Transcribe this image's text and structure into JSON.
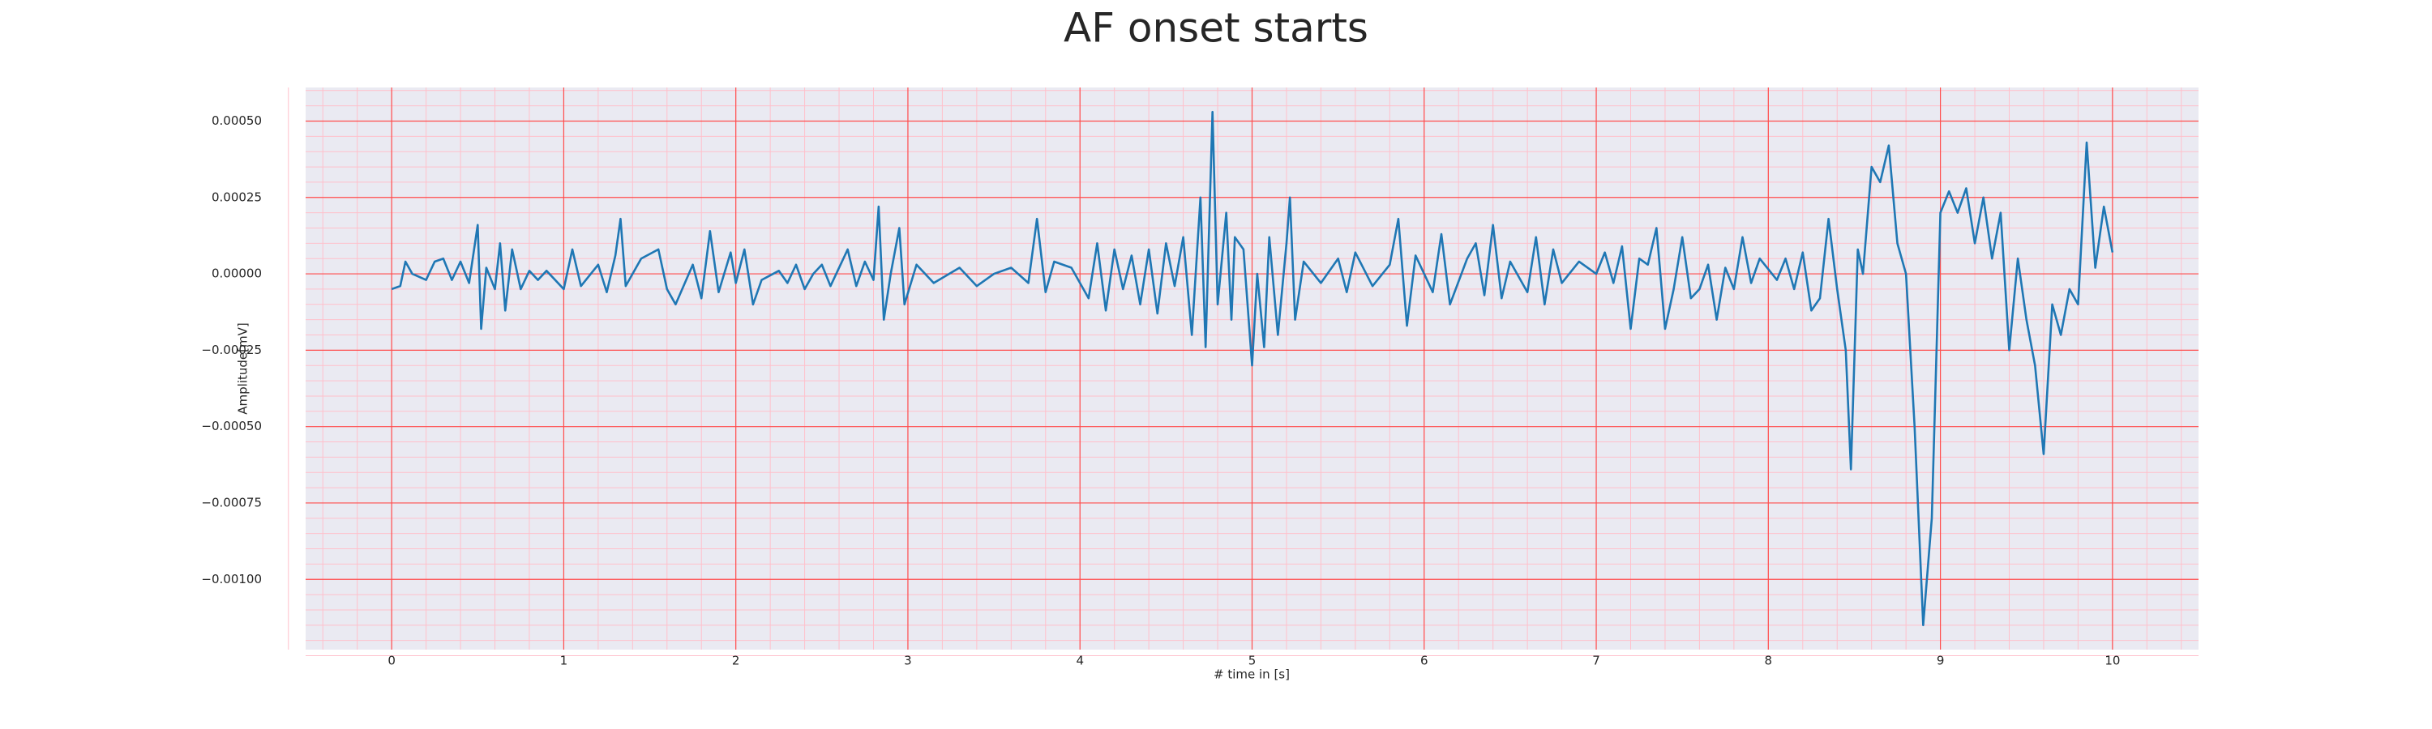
{
  "chart_data": {
    "type": "line",
    "title": "AF onset starts",
    "xlabel": "# time in [s]",
    "ylabel": "Amplitude[mV]",
    "x": [
      0,
      0.05,
      0.08,
      0.12,
      0.2,
      0.25,
      0.3,
      0.35,
      0.4,
      0.45,
      0.5,
      0.52,
      0.55,
      0.6,
      0.63,
      0.66,
      0.7,
      0.75,
      0.8,
      0.85,
      0.9,
      1.0,
      1.05,
      1.1,
      1.2,
      1.25,
      1.3,
      1.33,
      1.36,
      1.45,
      1.55,
      1.6,
      1.65,
      1.75,
      1.8,
      1.85,
      1.9,
      1.97,
      2.0,
      2.05,
      2.1,
      2.15,
      2.25,
      2.3,
      2.35,
      2.4,
      2.45,
      2.5,
      2.55,
      2.6,
      2.65,
      2.7,
      2.75,
      2.8,
      2.83,
      2.86,
      2.9,
      2.95,
      2.98,
      3.05,
      3.15,
      3.3,
      3.4,
      3.5,
      3.6,
      3.7,
      3.75,
      3.8,
      3.85,
      3.95,
      4.05,
      4.1,
      4.15,
      4.2,
      4.25,
      4.3,
      4.35,
      4.4,
      4.45,
      4.5,
      4.55,
      4.6,
      4.65,
      4.7,
      4.73,
      4.77,
      4.8,
      4.85,
      4.88,
      4.9,
      4.95,
      5.0,
      5.03,
      5.07,
      5.1,
      5.15,
      5.2,
      5.22,
      5.25,
      5.3,
      5.4,
      5.5,
      5.55,
      5.6,
      5.7,
      5.8,
      5.85,
      5.9,
      5.95,
      6.05,
      6.1,
      6.15,
      6.25,
      6.3,
      6.35,
      6.4,
      6.45,
      6.5,
      6.6,
      6.65,
      6.7,
      6.75,
      6.8,
      6.9,
      7.0,
      7.05,
      7.1,
      7.15,
      7.2,
      7.25,
      7.3,
      7.35,
      7.4,
      7.45,
      7.5,
      7.55,
      7.6,
      7.65,
      7.7,
      7.75,
      7.8,
      7.85,
      7.9,
      7.95,
      8.05,
      8.1,
      8.15,
      8.2,
      8.25,
      8.3,
      8.35,
      8.4,
      8.45,
      8.48,
      8.52,
      8.55,
      8.6,
      8.65,
      8.7,
      8.75,
      8.8,
      8.85,
      8.9,
      8.95,
      9.0,
      9.05,
      9.1,
      9.15,
      9.2,
      9.25,
      9.3,
      9.35,
      9.4,
      9.45,
      9.5,
      9.55,
      9.6,
      9.65,
      9.7,
      9.75,
      9.8,
      9.85,
      9.9,
      9.95,
      10.0
    ],
    "series": [
      {
        "color": "#1f77b4",
        "values": [
          -5e-05,
          -4e-05,
          4e-05,
          0.0,
          -2e-05,
          4e-05,
          5e-05,
          -2e-05,
          4e-05,
          -3e-05,
          0.00016,
          -0.00018,
          2e-05,
          -5e-05,
          0.0001,
          -0.00012,
          8e-05,
          -5e-05,
          1e-05,
          -2e-05,
          1e-05,
          -5e-05,
          8e-05,
          -4e-05,
          3e-05,
          -6e-05,
          6e-05,
          0.00018,
          -4e-05,
          5e-05,
          8e-05,
          -5e-05,
          -0.0001,
          3e-05,
          -8e-05,
          0.00014,
          -6e-05,
          7e-05,
          -3e-05,
          8e-05,
          -0.0001,
          -2e-05,
          1e-05,
          -3e-05,
          3e-05,
          -5e-05,
          0.0,
          3e-05,
          -4e-05,
          2e-05,
          8e-05,
          -4e-05,
          4e-05,
          -2e-05,
          0.00022,
          -0.00015,
          0.0,
          0.00015,
          -0.0001,
          3e-05,
          -3e-05,
          2e-05,
          -4e-05,
          0.0,
          2e-05,
          -3e-05,
          0.00018,
          -6e-05,
          4e-05,
          2e-05,
          -8e-05,
          0.0001,
          -0.00012,
          8e-05,
          -5e-05,
          6e-05,
          -0.0001,
          8e-05,
          -0.00013,
          0.0001,
          -4e-05,
          0.00012,
          -0.0002,
          0.00025,
          -0.00024,
          0.00053,
          -0.0001,
          0.0002,
          -0.00015,
          0.00012,
          8e-05,
          -0.0003,
          0.0,
          -0.00024,
          0.00012,
          -0.0002,
          0.0001,
          0.00025,
          -0.00015,
          4e-05,
          -3e-05,
          5e-05,
          -6e-05,
          7e-05,
          -4e-05,
          3e-05,
          0.00018,
          -0.00017,
          6e-05,
          -6e-05,
          0.00013,
          -0.0001,
          5e-05,
          0.0001,
          -7e-05,
          0.00016,
          -8e-05,
          4e-05,
          -6e-05,
          0.00012,
          -0.0001,
          8e-05,
          -3e-05,
          4e-05,
          0.0,
          7e-05,
          -3e-05,
          9e-05,
          -0.00018,
          5e-05,
          3e-05,
          0.00015,
          -0.00018,
          -5e-05,
          0.00012,
          -8e-05,
          -5e-05,
          3e-05,
          -0.00015,
          2e-05,
          -5e-05,
          0.00012,
          -3e-05,
          5e-05,
          -2e-05,
          5e-05,
          -5e-05,
          7e-05,
          -0.00012,
          -8e-05,
          0.00018,
          -5e-05,
          -0.00025,
          -0.00064,
          8e-05,
          0.0,
          0.00035,
          0.0003,
          0.00042,
          0.0001,
          0.0,
          -0.0005,
          -0.00115,
          -0.0008,
          0.0002,
          0.00027,
          0.0002,
          0.00028,
          0.0001,
          0.00025,
          5e-05,
          0.0002,
          -0.00025,
          5e-05,
          -0.00015,
          -0.0003,
          -0.00059,
          -0.0001,
          -0.0002,
          -5e-05,
          -0.0001,
          0.00043,
          2e-05,
          0.00022,
          7e-05
        ]
      }
    ],
    "xlim": [
      -0.5,
      10.5
    ],
    "xticks": [
      0,
      1,
      2,
      3,
      4,
      5,
      6,
      7,
      8,
      9,
      10
    ],
    "ylim": [
      -0.00123,
      0.00061
    ],
    "yticks": [
      {
        "value": 0.0005,
        "label": "0.00050"
      },
      {
        "value": 0.00025,
        "label": "0.00025"
      },
      {
        "value": 0,
        "label": "0.00000"
      },
      {
        "value": -0.00025,
        "label": "−0.00025"
      },
      {
        "value": -0.0005,
        "label": "−0.00050"
      },
      {
        "value": -0.00075,
        "label": "−0.00075"
      },
      {
        "value": -0.001,
        "label": "−0.00100"
      }
    ],
    "grid": true,
    "minor_grid": true,
    "grid_color": "#ff4d4d",
    "minor_grid_color": "#ffc0cb",
    "background": "#eaeaf2"
  }
}
